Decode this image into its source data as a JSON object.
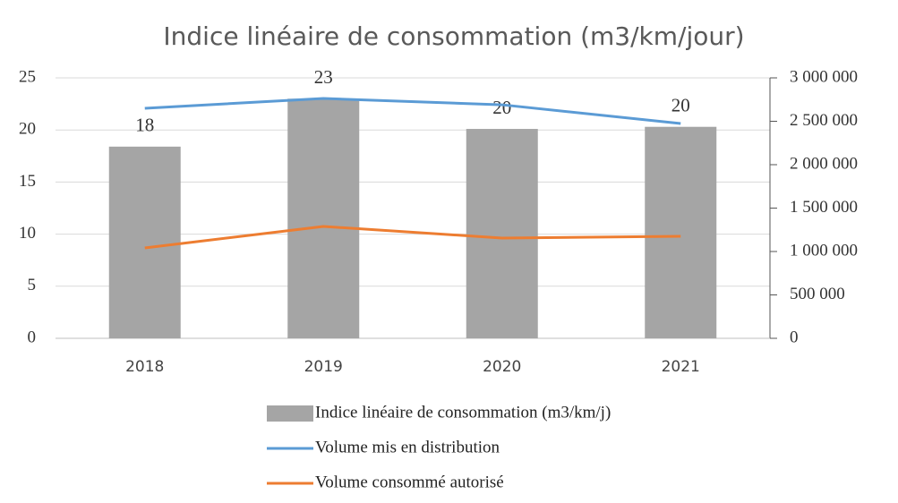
{
  "chart_data": {
    "type": "bar-line",
    "title": "Indice linéaire de consommation (m3/km/jour)",
    "categories": [
      "2018",
      "2019",
      "2020",
      "2021"
    ],
    "ylim": [
      0,
      25
    ],
    "yticks": [
      0,
      5,
      10,
      15,
      20,
      25
    ],
    "y2lim": [
      0,
      3000000
    ],
    "y2ticks": [
      0,
      {
        "value": 500000,
        "label": "500 000"
      },
      {
        "value": 1000000,
        "label": "1 000 000"
      },
      {
        "value": 1500000,
        "label": "1 500 000"
      },
      {
        "value": 2000000,
        "label": "2 000 000"
      },
      {
        "value": 2500000,
        "label": "2 500 000"
      },
      {
        "value": 3000000,
        "label": "3 000 000"
      }
    ],
    "series": [
      {
        "name": "Indice linéaire de consommation (m3/km/j)",
        "type": "bar",
        "color": "#a5a5a5",
        "values": [
          18.4,
          23,
          20.1,
          20.3
        ],
        "value_labels": [
          "18",
          "23",
          "20",
          "20"
        ]
      },
      {
        "name": "Volume mis en distribution",
        "type": "line",
        "axis": "y2",
        "color": "#5b9bd5",
        "values": [
          2649000,
          2763000,
          2690000,
          2474000
        ]
      },
      {
        "name": "Volume consommé autorisé",
        "type": "line",
        "axis": "y2",
        "color": "#ed7d31",
        "values": [
          1041000,
          1289000,
          1155000,
          1175000
        ]
      }
    ]
  }
}
